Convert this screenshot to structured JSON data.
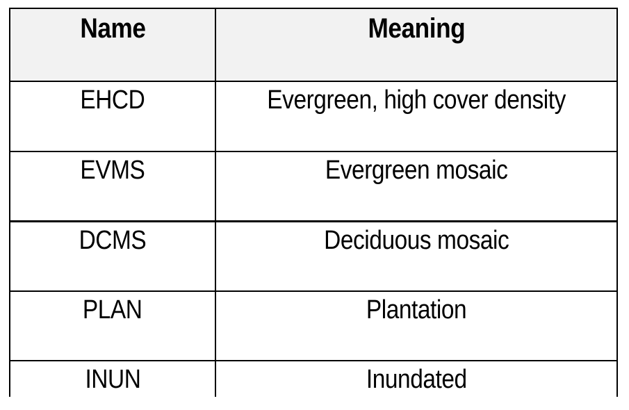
{
  "table": {
    "headers": {
      "name": "Name",
      "meaning": "Meaning"
    },
    "rows": [
      {
        "name": "EHCD",
        "meaning": "Evergreen, high cover density"
      },
      {
        "name": "EVMS",
        "meaning": "Evergreen mosaic"
      },
      {
        "name": "DCMS",
        "meaning": "Deciduous mosaic"
      },
      {
        "name": "PLAN",
        "meaning": "Plantation"
      },
      {
        "name": "INUN",
        "meaning": "Inundated"
      }
    ]
  }
}
